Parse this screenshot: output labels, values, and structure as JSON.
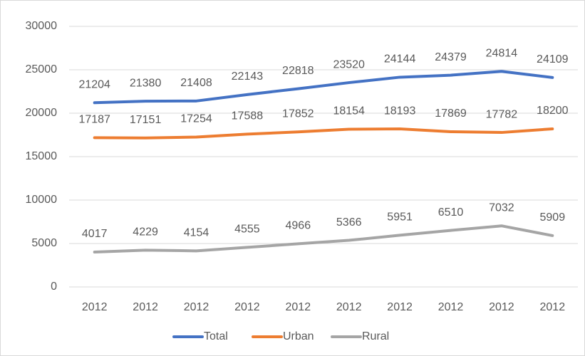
{
  "chart_data": {
    "type": "line",
    "categories": [
      "2012",
      "2012",
      "2012",
      "2012",
      "2012",
      "2012",
      "2012",
      "2012",
      "2012",
      "2012"
    ],
    "series": [
      {
        "name": "Total",
        "color": "#4472c4",
        "values": [
          21204,
          21380,
          21408,
          22143,
          22818,
          23520,
          24144,
          24379,
          24814,
          24109
        ]
      },
      {
        "name": "Urban",
        "color": "#ed7d31",
        "values": [
          17187,
          17151,
          17254,
          17588,
          17852,
          18154,
          18193,
          17869,
          17782,
          18200
        ]
      },
      {
        "name": "Rural",
        "color": "#a5a5a5",
        "values": [
          4017,
          4229,
          4154,
          4555,
          4966,
          5366,
          5951,
          6510,
          7032,
          5909
        ]
      }
    ],
    "ylim": [
      0,
      30000
    ],
    "yticks": [
      0,
      5000,
      10000,
      15000,
      20000,
      25000,
      30000
    ],
    "grid": true,
    "legend": "bottom",
    "data_labels": true
  }
}
